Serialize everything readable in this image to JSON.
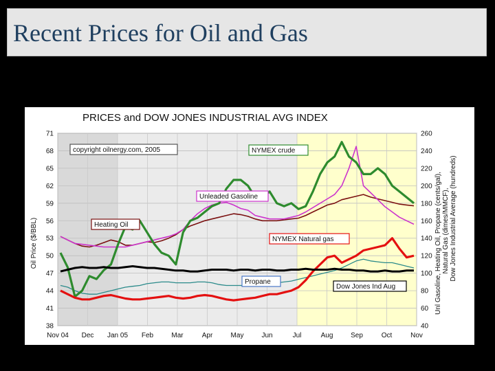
{
  "slide": {
    "title": "Recent Prices for Oil and Gas"
  },
  "chart_data": {
    "type": "line",
    "title": "PRICES and DOW JONES INDUSTRIAL AVG INDEX",
    "ylabel_left": "Oil Price ($/BBL)",
    "ylabel_right_lines": [
      "Unl Gasoline, Heating Oil, Propane (cents/gal),",
      "Natural Gas (dimes/MMCF),",
      "Dow Jones Industrial Average (hundreds)"
    ],
    "left_ticks": [
      "38",
      "41",
      "44",
      "47",
      "50",
      "53",
      "56",
      "59",
      "62",
      "65",
      "68",
      "71"
    ],
    "right_ticks": [
      "40",
      "60",
      "80",
      "100",
      "120",
      "140",
      "160",
      "180",
      "200",
      "220",
      "240",
      "260"
    ],
    "ylim_left": [
      38,
      71
    ],
    "ylim_right": [
      40,
      260
    ],
    "x_ticks": [
      "Nov 04",
      "Dec",
      "Jan 05",
      "Feb",
      "Mar",
      "Apr",
      "May",
      "Jun",
      "Jul",
      "Aug",
      "Sep",
      "Oct",
      "Nov"
    ],
    "copyright": "copyright oilnergy.com, 2005",
    "colors": {
      "crude": "#2e8b2e",
      "gasoline": "#cc33cc",
      "heating_oil": "#7a1010",
      "natural_gas": "#e41010",
      "propane": "#2a8a8a",
      "dow": "#000000",
      "band_light": "#d9d9d9",
      "band_dark": "#ebebeb",
      "band_yellow": "#ffffcc"
    },
    "series": [
      {
        "name": "NYMEX crude",
        "axis": "left",
        "values": [
          50.5,
          48.0,
          43.0,
          44.0,
          46.5,
          46.0,
          47.5,
          48.5,
          52.0,
          55.0,
          54.5,
          56.0,
          54.0,
          52.0,
          50.5,
          50.0,
          48.5,
          54.0,
          56.0,
          56.5,
          57.5,
          58.5,
          59.0,
          61.5,
          63.0,
          63.0,
          62.0,
          60.0,
          60.0,
          61.0,
          59.0,
          58.5,
          59.0,
          58.0,
          58.5,
          61.0,
          64.0,
          66.0,
          67.0,
          69.5,
          67.0,
          66.0,
          64.0,
          64.0,
          65.0,
          64.0,
          62.0,
          61.0,
          60.0,
          59.0
        ]
      },
      {
        "name": "Unleaded Gasoline",
        "axis": "right",
        "values": [
          142,
          138,
          134,
          133,
          132,
          131,
          130,
          130,
          130,
          130,
          132,
          134,
          136,
          138,
          140,
          142,
          145,
          150,
          160,
          168,
          174,
          178,
          180,
          181,
          178,
          174,
          172,
          166,
          164,
          162,
          162,
          162,
          164,
          166,
          170,
          175,
          180,
          185,
          190,
          200,
          220,
          245,
          200,
          192,
          184,
          176,
          170,
          164,
          160,
          156
        ]
      },
      {
        "name": "Heating Oil",
        "axis": "right",
        "values": [
          142,
          138,
          134,
          131,
          130,
          132,
          135,
          138,
          136,
          132,
          132,
          134,
          136,
          135,
          137,
          140,
          144,
          150,
          154,
          157,
          160,
          162,
          164,
          166,
          168,
          167,
          165,
          162,
          160,
          160,
          160,
          161,
          162,
          163,
          166,
          170,
          174,
          178,
          180,
          184,
          186,
          188,
          190,
          187,
          185,
          183,
          181,
          179,
          178,
          177
        ]
      },
      {
        "name": "NYMEX Natural gas",
        "axis": "right",
        "values": [
          80,
          76,
          72,
          70,
          70,
          72,
          74,
          75,
          73,
          71,
          70,
          70,
          71,
          72,
          73,
          74,
          72,
          71,
          72,
          74,
          75,
          74,
          72,
          70,
          69,
          70,
          71,
          72,
          74,
          76,
          76,
          78,
          80,
          84,
          92,
          102,
          110,
          118,
          120,
          112,
          116,
          120,
          126,
          128,
          130,
          132,
          140,
          128,
          118,
          120
        ]
      },
      {
        "name": "Propane",
        "axis": "right",
        "values": [
          86,
          84,
          80,
          77,
          76,
          76,
          78,
          80,
          82,
          84,
          85,
          86,
          88,
          89,
          90,
          90,
          89,
          89,
          89,
          90,
          90,
          89,
          87,
          86,
          86,
          86,
          86,
          86,
          87,
          88,
          89,
          90,
          91,
          93,
          95,
          97,
          99,
          101,
          103,
          106,
          110,
          114,
          116,
          114,
          113,
          112,
          112,
          110,
          108,
          106
        ]
      },
      {
        "name": "Dow Jones Ind Aug",
        "axis": "right",
        "values": [
          102,
          104,
          106,
          107,
          106,
          106,
          107,
          106,
          106,
          107,
          108,
          107,
          106,
          106,
          105,
          104,
          103,
          103,
          102,
          102,
          103,
          104,
          104,
          104,
          103,
          104,
          104,
          103,
          104,
          104,
          103,
          103,
          104,
          104,
          105,
          104,
          104,
          104,
          105,
          104,
          104,
          103,
          103,
          102,
          102,
          103,
          102,
          102,
          103,
          103
        ]
      }
    ],
    "labels": {
      "crude": "NYMEX crude",
      "gasoline": "Unleaded Gasoline",
      "heating_oil": "Heating Oil",
      "natural_gas": "NYMEX Natural gas",
      "propane": "Propane",
      "dow": "Dow Jones Ind Aug"
    },
    "grid": true
  }
}
